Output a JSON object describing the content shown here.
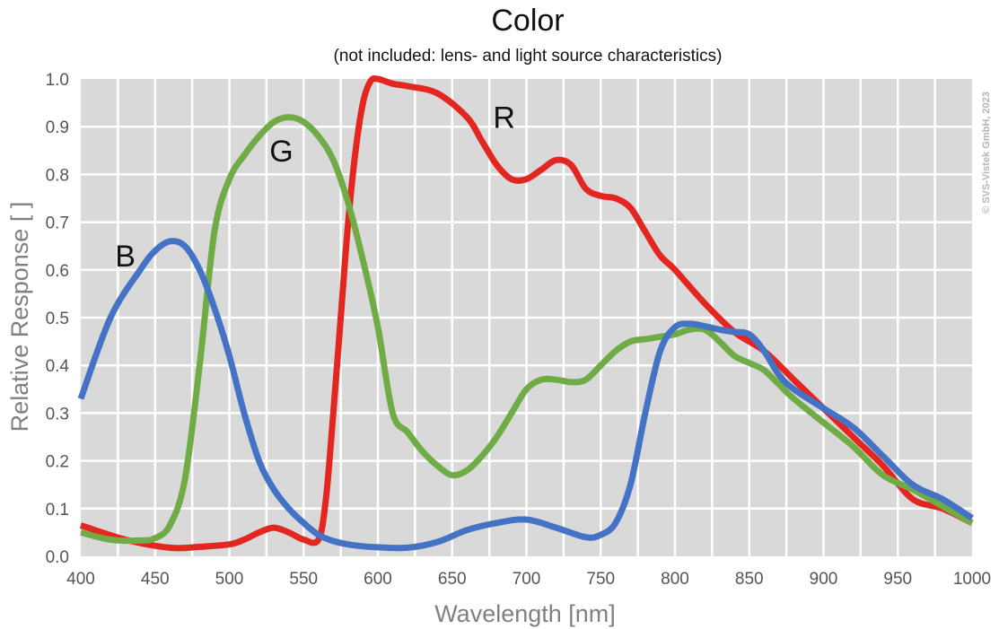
{
  "chart_data": {
    "type": "line",
    "title": "Color",
    "subtitle": "(not included: lens- and light source characteristics)",
    "xlabel": "Wavelength [nm]",
    "ylabel": "Relative Response [ ]",
    "xlim": [
      400,
      1000
    ],
    "ylim": [
      0.0,
      1.0
    ],
    "x_ticks": [
      "400",
      "450",
      "500",
      "550",
      "600",
      "650",
      "700",
      "750",
      "800",
      "850",
      "900",
      "950",
      "1000"
    ],
    "y_ticks": [
      "0.0",
      "0.1",
      "0.2",
      "0.3",
      "0.4",
      "0.5",
      "0.6",
      "0.7",
      "0.8",
      "0.9",
      "1.0"
    ],
    "grid": true,
    "background": "#d9d9d9",
    "copyright": "© SVS-Vistek GmbH, 2023",
    "series": [
      {
        "name": "R",
        "color": "#e3261f",
        "label_at": [
          685,
          0.92
        ],
        "x": [
          400,
          430,
          460,
          480,
          500,
          510,
          520,
          530,
          540,
          550,
          560,
          565,
          570,
          575,
          580,
          585,
          590,
          595,
          600,
          610,
          620,
          640,
          660,
          670,
          680,
          690,
          700,
          710,
          720,
          730,
          740,
          750,
          760,
          770,
          780,
          790,
          800,
          820,
          840,
          860,
          880,
          900,
          920,
          940,
          960,
          980,
          1000
        ],
        "y": [
          0.065,
          0.035,
          0.018,
          0.02,
          0.025,
          0.035,
          0.05,
          0.06,
          0.05,
          0.035,
          0.035,
          0.12,
          0.3,
          0.5,
          0.7,
          0.85,
          0.95,
          0.995,
          1.0,
          0.99,
          0.985,
          0.97,
          0.92,
          0.87,
          0.82,
          0.79,
          0.79,
          0.81,
          0.83,
          0.82,
          0.77,
          0.755,
          0.75,
          0.73,
          0.68,
          0.63,
          0.6,
          0.53,
          0.47,
          0.43,
          0.37,
          0.31,
          0.25,
          0.19,
          0.12,
          0.1,
          0.07
        ]
      },
      {
        "name": "G",
        "color": "#6fac46",
        "label_at": [
          535,
          0.85
        ],
        "x": [
          400,
          420,
          440,
          450,
          460,
          470,
          480,
          490,
          500,
          510,
          520,
          530,
          540,
          550,
          560,
          570,
          580,
          590,
          600,
          610,
          620,
          630,
          640,
          650,
          660,
          670,
          680,
          690,
          700,
          710,
          720,
          730,
          740,
          750,
          760,
          770,
          780,
          790,
          800,
          810,
          820,
          830,
          840,
          850,
          860,
          870,
          880,
          900,
          920,
          940,
          960,
          980,
          1000
        ],
        "y": [
          0.05,
          0.035,
          0.033,
          0.038,
          0.065,
          0.16,
          0.4,
          0.68,
          0.79,
          0.84,
          0.88,
          0.91,
          0.92,
          0.91,
          0.88,
          0.83,
          0.74,
          0.62,
          0.48,
          0.3,
          0.26,
          0.22,
          0.19,
          0.17,
          0.18,
          0.21,
          0.25,
          0.3,
          0.35,
          0.37,
          0.37,
          0.365,
          0.37,
          0.4,
          0.43,
          0.45,
          0.455,
          0.46,
          0.465,
          0.475,
          0.475,
          0.45,
          0.42,
          0.405,
          0.39,
          0.36,
          0.33,
          0.28,
          0.23,
          0.17,
          0.14,
          0.105,
          0.07
        ]
      },
      {
        "name": "B",
        "color": "#4472c4",
        "label_at": [
          430,
          0.63
        ],
        "x": [
          400,
          420,
          440,
          450,
          460,
          470,
          480,
          490,
          500,
          510,
          520,
          530,
          540,
          550,
          560,
          570,
          580,
          590,
          600,
          620,
          640,
          660,
          680,
          700,
          720,
          740,
          750,
          760,
          770,
          780,
          790,
          800,
          810,
          820,
          830,
          840,
          850,
          860,
          870,
          880,
          900,
          920,
          940,
          960,
          980,
          1000
        ],
        "y": [
          0.33,
          0.5,
          0.6,
          0.64,
          0.66,
          0.65,
          0.6,
          0.52,
          0.42,
          0.3,
          0.2,
          0.14,
          0.1,
          0.07,
          0.045,
          0.032,
          0.025,
          0.021,
          0.019,
          0.018,
          0.03,
          0.055,
          0.07,
          0.077,
          0.06,
          0.04,
          0.045,
          0.07,
          0.15,
          0.3,
          0.43,
          0.48,
          0.487,
          0.482,
          0.475,
          0.47,
          0.465,
          0.43,
          0.38,
          0.35,
          0.31,
          0.27,
          0.21,
          0.15,
          0.12,
          0.08
        ]
      }
    ]
  }
}
